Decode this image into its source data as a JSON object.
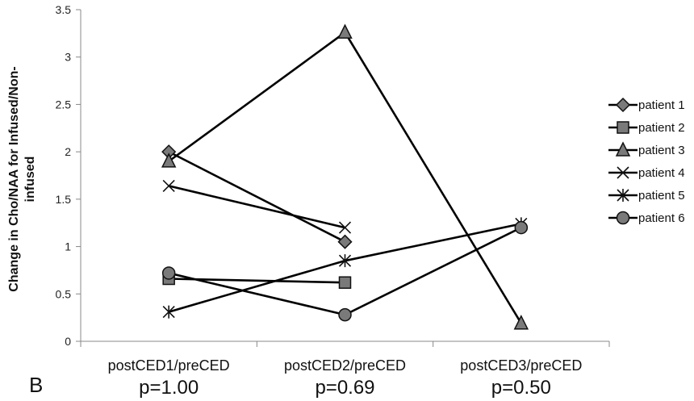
{
  "chart_data": {
    "type": "line",
    "panel_label": "B",
    "ylabel_lines": [
      "Change in Cho/NAA for Infused/Non-",
      "infused"
    ],
    "ylim": [
      0,
      3.5
    ],
    "yticks": [
      "0",
      "0.5",
      "1",
      "1.5",
      "2",
      "2.5",
      "3",
      "3.5"
    ],
    "categories": [
      "postCED1/preCED",
      "postCED2/preCED",
      "postCED3/preCED"
    ],
    "p_values": [
      "p=1.00",
      "p=0.69",
      "p=0.50"
    ],
    "grid": false,
    "legend_position": "right",
    "series": [
      {
        "name": "patient 1",
        "marker": "diamond",
        "values": [
          2.0,
          1.05,
          null
        ]
      },
      {
        "name": "patient 2",
        "marker": "square",
        "values": [
          0.66,
          0.62,
          null
        ]
      },
      {
        "name": "patient 3",
        "marker": "triangle",
        "values": [
          1.9,
          3.26,
          0.19
        ]
      },
      {
        "name": "patient 4",
        "marker": "x",
        "values": [
          1.64,
          1.2,
          null
        ]
      },
      {
        "name": "patient 5",
        "marker": "star",
        "values": [
          0.31,
          0.85,
          1.24
        ]
      },
      {
        "name": "patient 6",
        "marker": "circle",
        "values": [
          0.72,
          0.28,
          1.2
        ]
      }
    ]
  }
}
